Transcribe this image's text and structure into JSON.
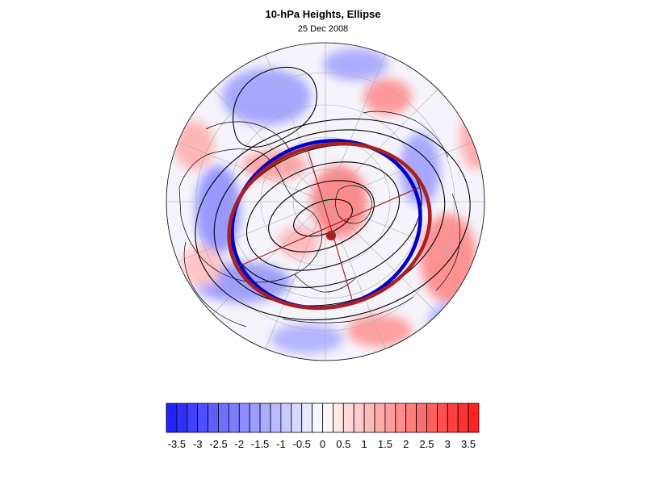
{
  "title": "10-hPa Heights, Ellipse",
  "subtitle": "25 Dec 2008",
  "colors": {
    "negative_max": "#1a1aff",
    "neutral": "#ffffff",
    "positive_max": "#ff1a1a",
    "ellipse_blue": "#0000cc",
    "ellipse_red": "#aa2020",
    "contour": "#000000"
  },
  "colorbar": {
    "min": -3.75,
    "max": 3.75,
    "step": 0.25,
    "tick_labels": [
      "-3.5",
      "-3",
      "-2.5",
      "-2",
      "-1.5",
      "-1",
      "-0.5",
      "0",
      "0.5",
      "1",
      "1.5",
      "2",
      "2.5",
      "3",
      "3.5"
    ],
    "tick_values": [
      -3.5,
      -3,
      -2.5,
      -2,
      -1.5,
      -1,
      -0.5,
      0,
      0.5,
      1,
      1.5,
      2,
      2.5,
      3,
      3.5
    ]
  }
}
